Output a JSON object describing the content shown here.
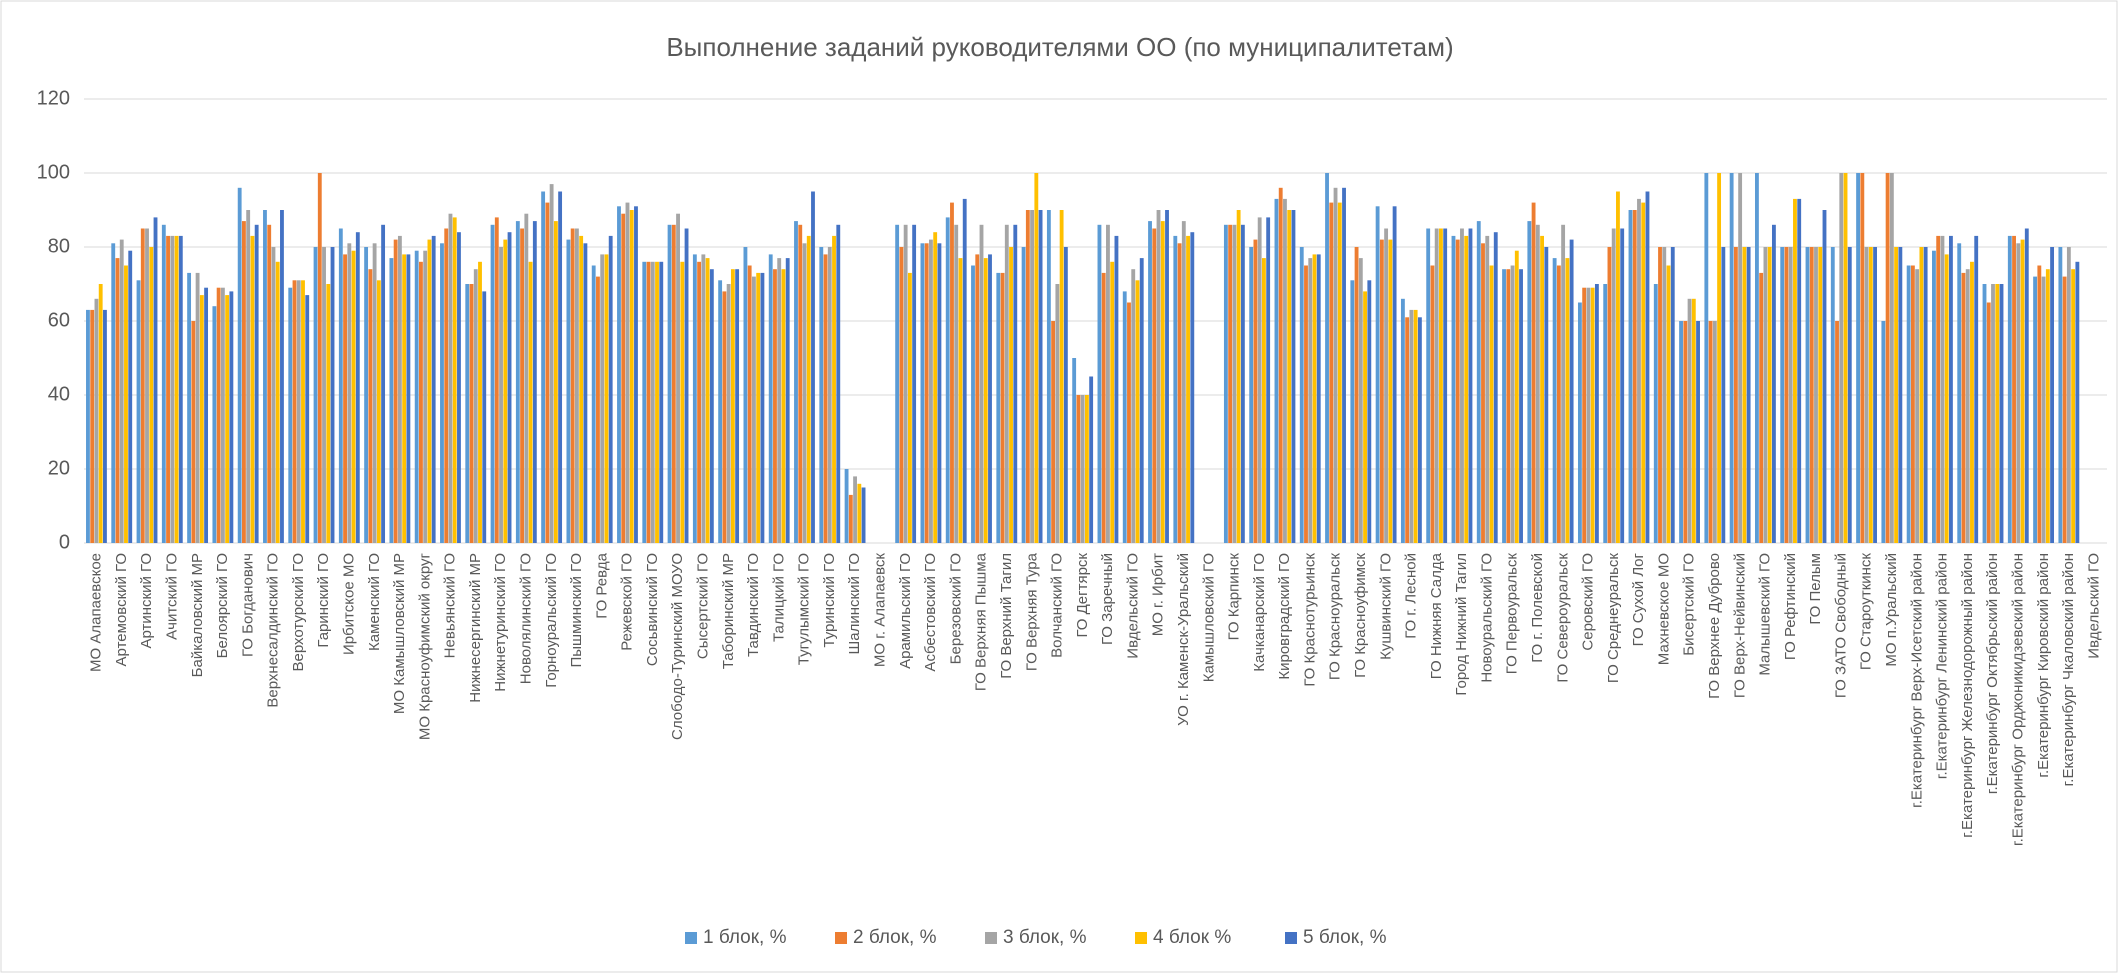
{
  "chart_data": {
    "type": "bar",
    "title": "Выполнение заданий руководителями ОО (по муниципалитетам)",
    "categories": [
      "МО Алапаевское",
      "Артемовский ГО",
      "Артинский ГО",
      "Ачитский ГО",
      "Байкаловский МР",
      "Белоярский ГО",
      "ГО Богданович",
      "Верхнесалдинский ГО",
      "Верхотурский ГО",
      "Гаринский ГО",
      "Ирбитское МО",
      "Каменский ГО",
      "МО Камышловский МР",
      "МО Красноуфимский округ",
      "Невьянский ГО",
      "Нижнесергинский МР",
      "Нижнетуринский ГО",
      "Новолялинский ГО",
      "Горноуральский ГО",
      "Пышминский ГО",
      "ГО Ревда",
      "Режевской ГО",
      "Сосьвинский ГО",
      "Слободо-Туринский МОУО",
      "Сысертский ГО",
      "Таборинский МР",
      "Тавдинский ГО",
      "Талицкий ГО",
      "Тугулымский ГО",
      "Туринский ГО",
      "Шалинский ГО",
      "МО г. Алапаевск",
      "Арамильский ГО",
      "Асбестовский ГО",
      "Березовский ГО",
      "ГО Верхняя Пышма",
      "ГО Верхний Тагил",
      "ГО Верхняя Тура",
      "Волчанский ГО",
      "ГО Дегтярск",
      "ГО Заречный",
      "Ивдельский ГО",
      "МО г. Ирбит",
      "УО г. Каменск-Уральский",
      "Камышловский ГО",
      "ГО Карпинск",
      "Качканарский ГО",
      "Кировградский ГО",
      "ГО Краснотурьинск",
      "ГО Красноуральск",
      "ГО Красноуфимск",
      "Кушвинский ГО",
      "ГО г. Лесной",
      "ГО Нижняя Салда",
      "Город Нижний Тагил",
      "Новоуральский ГО",
      "ГО Первоуральск",
      "ГО г. Полевской",
      "ГО Североуральск",
      "Серовский ГО",
      "ГО Среднеуральск",
      "ГО Сухой Лог",
      "Махневское МО",
      "Бисертский ГО",
      "ГО Верхнее Дуброво",
      "ГО Верх-Нейвинский",
      "Малышевский ГО",
      "ГО Рефтинский",
      "ГО Пелым",
      "ГО ЗАТО Свободный",
      "ГО Староуткинск",
      "МО п.Уральский",
      "г.Екатеринбург Верх-Исетский район",
      "г.Екатеринбург Ленинский район",
      "г.Екатеринбург Железнодорожный район",
      "г.Екатеринбург Октябрьский район",
      "г.Екатеринбург Орджоникидзевский район",
      "г.Екатеринбург Кировский район",
      "г.Екатеринбург Чкаловский район",
      "Ивдельский ГО"
    ],
    "series": [
      {
        "name": "1 блок, %",
        "color": "#5b9bd5",
        "values": [
          63,
          81,
          71,
          86,
          73,
          64,
          96,
          90,
          69,
          80,
          85,
          80,
          77,
          79,
          81,
          70,
          86,
          87,
          95,
          82,
          75,
          91,
          76,
          86,
          78,
          71,
          80,
          78,
          87,
          80,
          20,
          null,
          86,
          81,
          88,
          75,
          73,
          80,
          90,
          50,
          86,
          68,
          87,
          83,
          null,
          86,
          80,
          93,
          80,
          100,
          71,
          91,
          66,
          85,
          83,
          87,
          74,
          87,
          77,
          65,
          70,
          90,
          70,
          60,
          100,
          100,
          100,
          80,
          80,
          80,
          100,
          60,
          75,
          79,
          81,
          70,
          83,
          72,
          80,
          null
        ]
      },
      {
        "name": "2 блок, %",
        "color": "#ed7d31",
        "values": [
          63,
          77,
          85,
          83,
          60,
          69,
          87,
          86,
          71,
          100,
          78,
          74,
          82,
          76,
          85,
          70,
          88,
          85,
          92,
          85,
          72,
          89,
          76,
          86,
          76,
          68,
          75,
          74,
          86,
          78,
          13,
          null,
          80,
          81,
          92,
          78,
          73,
          90,
          60,
          40,
          73,
          65,
          85,
          81,
          null,
          86,
          82,
          96,
          75,
          92,
          80,
          82,
          61,
          75,
          82,
          81,
          74,
          92,
          75,
          69,
          80,
          90,
          80,
          60,
          60,
          80,
          73,
          80,
          80,
          60,
          100,
          100,
          75,
          83,
          73,
          65,
          83,
          75,
          72,
          null
        ]
      },
      {
        "name": "3 блок, %",
        "color": "#a5a5a5",
        "values": [
          66,
          82,
          85,
          83,
          73,
          69,
          90,
          80,
          71,
          80,
          81,
          81,
          83,
          79,
          89,
          74,
          80,
          89,
          97,
          85,
          78,
          92,
          76,
          89,
          78,
          70,
          72,
          77,
          81,
          80,
          18,
          null,
          86,
          82,
          86,
          86,
          86,
          90,
          70,
          40,
          86,
          74,
          90,
          87,
          null,
          86,
          88,
          93,
          77,
          96,
          77,
          85,
          63,
          85,
          85,
          83,
          75,
          86,
          86,
          69,
          85,
          93,
          80,
          66,
          60,
          100,
          80,
          80,
          80,
          100,
          80,
          100,
          74,
          83,
          74,
          70,
          81,
          72,
          80,
          null
        ]
      },
      {
        "name": "4 блок %",
        "color": "#ffc000",
        "values": [
          70,
          75,
          80,
          83,
          67,
          67,
          83,
          76,
          71,
          70,
          79,
          71,
          78,
          82,
          88,
          76,
          82,
          76,
          87,
          83,
          78,
          90,
          76,
          76,
          77,
          74,
          73,
          74,
          83,
          83,
          16,
          null,
          73,
          84,
          77,
          77,
          80,
          100,
          90,
          40,
          76,
          71,
          87,
          83,
          null,
          90,
          77,
          90,
          78,
          92,
          68,
          82,
          63,
          85,
          83,
          75,
          79,
          83,
          77,
          69,
          95,
          92,
          75,
          66,
          100,
          80,
          80,
          93,
          80,
          100,
          80,
          80,
          80,
          78,
          76,
          70,
          82,
          74,
          74,
          null
        ]
      },
      {
        "name": "5 блок, %",
        "color": "#4472c4",
        "values": [
          63,
          79,
          88,
          83,
          69,
          68,
          86,
          90,
          67,
          80,
          84,
          86,
          78,
          83,
          84,
          68,
          84,
          87,
          95,
          81,
          83,
          91,
          76,
          85,
          74,
          74,
          73,
          77,
          95,
          86,
          15,
          null,
          86,
          81,
          93,
          78,
          86,
          90,
          80,
          45,
          83,
          77,
          90,
          84,
          null,
          86,
          88,
          90,
          78,
          96,
          71,
          91,
          61,
          85,
          85,
          84,
          74,
          80,
          82,
          70,
          85,
          95,
          80,
          60,
          80,
          80,
          86,
          93,
          90,
          80,
          80,
          80,
          80,
          83,
          83,
          70,
          85,
          80,
          76,
          null
        ]
      }
    ],
    "ylim": [
      0,
      120
    ],
    "yticks": [
      0,
      20,
      40,
      60,
      80,
      100,
      120
    ],
    "grid": true,
    "legend": "bottom"
  }
}
